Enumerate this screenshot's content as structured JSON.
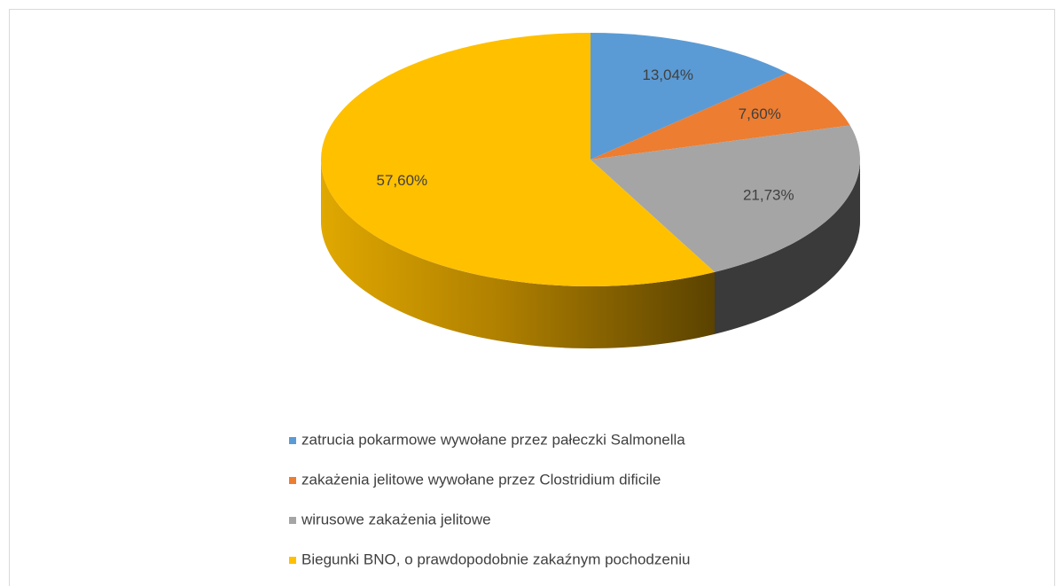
{
  "chart_data": {
    "type": "pie",
    "categories": [
      "zatrucia pokarmowe wywołane przez pałeczki Salmonella",
      "zakażenia jelitowe wywołane przez Clostridium dificile",
      "wirusowe zakażenia jelitowe",
      "Biegunki BNO, o prawdopodobnie zakaźnym pochodzeniu"
    ],
    "values": [
      13.04,
      7.6,
      21.73,
      57.6
    ],
    "value_labels": [
      "13,04%",
      "7,60%",
      "21,73%",
      "57,60%"
    ],
    "colors": [
      "#5b9bd5",
      "#ed7d31",
      "#a5a5a5",
      "#ffc000"
    ],
    "legend": "bottom"
  }
}
